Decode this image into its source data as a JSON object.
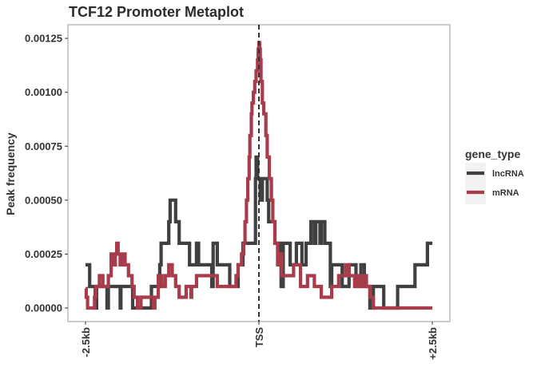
{
  "chart_data": {
    "type": "line",
    "title": "TCF12 Promoter Metaplot",
    "xlabel": "",
    "ylabel": "Peak frequency",
    "xlim": [
      -2500,
      2500
    ],
    "ylim": [
      0,
      0.00128
    ],
    "x_ticks": [
      {
        "value": -2500,
        "label": "-2.5kb"
      },
      {
        "value": 0,
        "label": "TSS"
      },
      {
        "value": 2500,
        "label": "+2.5kb"
      }
    ],
    "y_ticks": [
      {
        "value": 0,
        "label": "0.00000"
      },
      {
        "value": 0.00025,
        "label": "0.00025"
      },
      {
        "value": 0.0005,
        "label": "0.00050"
      },
      {
        "value": 0.00075,
        "label": "0.00075"
      },
      {
        "value": 0.001,
        "label": "0.00100"
      },
      {
        "value": 0.00125,
        "label": "0.00125"
      }
    ],
    "grid": false,
    "legend": {
      "title": "gene_type",
      "position": "right"
    },
    "vline": {
      "x": 0,
      "style": "dashed"
    },
    "series": [
      {
        "name": "lncRNA",
        "color": "#404040",
        "step": true,
        "points": [
          [
            -2500,
            0.0002
          ],
          [
            -2440,
            0.0001
          ],
          [
            -2360,
            0.0
          ],
          [
            -2340,
            0.0001
          ],
          [
            -2220,
            0.0001
          ],
          [
            -2190,
            0.0
          ],
          [
            -2170,
            0.0001
          ],
          [
            -2080,
            0.0001
          ],
          [
            -2030,
            0.0001
          ],
          [
            -2000,
            0.0
          ],
          [
            -1990,
            0.0001
          ],
          [
            -1890,
            0.0001
          ],
          [
            -1820,
            0.0
          ],
          [
            -1670,
            0.0
          ],
          [
            -1550,
            0.0001
          ],
          [
            -1430,
            0.0002
          ],
          [
            -1410,
            0.0003
          ],
          [
            -1300,
            0.0004
          ],
          [
            -1280,
            0.0005
          ],
          [
            -1200,
            0.0004
          ],
          [
            -1150,
            0.0003
          ],
          [
            -1000,
            0.0002
          ],
          [
            -900,
            0.0003
          ],
          [
            -870,
            0.0002
          ],
          [
            -700,
            0.0002
          ],
          [
            -680,
            0.0001
          ],
          [
            -660,
            0.0003
          ],
          [
            -600,
            0.0002
          ],
          [
            -450,
            0.0002
          ],
          [
            -420,
            0.0001
          ],
          [
            -350,
            0.0001
          ],
          [
            -300,
            0.0002
          ],
          [
            -230,
            0.0003
          ],
          [
            -150,
            0.0003
          ],
          [
            -50,
            0.0006
          ],
          [
            -40,
            0.0007
          ],
          [
            -20,
            0.0006
          ],
          [
            10,
            0.0006
          ],
          [
            20,
            0.0005
          ],
          [
            50,
            0.0006
          ],
          [
            100,
            0.0006
          ],
          [
            120,
            0.0005
          ],
          [
            140,
            0.0004
          ],
          [
            200,
            0.0004
          ],
          [
            220,
            0.0004
          ],
          [
            230,
            0.0003
          ],
          [
            280,
            0.0002
          ],
          [
            300,
            0.0003
          ],
          [
            320,
            0.0001
          ],
          [
            350,
            0.0003
          ],
          [
            420,
            0.0003
          ],
          [
            450,
            0.0002
          ],
          [
            480,
            0.0002
          ],
          [
            500,
            0.0002
          ],
          [
            520,
            0.0002
          ],
          [
            540,
            0.0003
          ],
          [
            600,
            0.0003
          ],
          [
            620,
            0.0002
          ],
          [
            680,
            0.0003
          ],
          [
            700,
            0.0003
          ],
          [
            750,
            0.0004
          ],
          [
            800,
            0.0003
          ],
          [
            820,
            0.0004
          ],
          [
            860,
            0.0004
          ],
          [
            880,
            0.0003
          ],
          [
            900,
            0.0004
          ],
          [
            950,
            0.0003
          ],
          [
            1000,
            0.0003
          ],
          [
            1030,
            0.0001
          ],
          [
            1050,
            0.0002
          ],
          [
            1150,
            0.0002
          ],
          [
            1200,
            0.0001
          ],
          [
            1300,
            0.0002
          ],
          [
            1400,
            0.0001
          ],
          [
            1450,
            0.0001
          ],
          [
            1470,
            0.0002
          ],
          [
            1520,
            0.0001
          ],
          [
            1600,
            0.0
          ],
          [
            1650,
            0.0001
          ],
          [
            1800,
            0.0
          ],
          [
            1950,
            0.0
          ],
          [
            2000,
            0.0001
          ],
          [
            2200,
            0.0001
          ],
          [
            2250,
            0.0002
          ],
          [
            2300,
            0.0002
          ],
          [
            2400,
            0.0002
          ],
          [
            2430,
            0.0003
          ],
          [
            2500,
            0.0003
          ]
        ]
      },
      {
        "name": "mRNA",
        "color": "#a83c4a",
        "step": true,
        "points": [
          [
            -2500,
            9e-05
          ],
          [
            -2490,
            5e-05
          ],
          [
            -2470,
            0.0
          ],
          [
            -2370,
            5e-05
          ],
          [
            -2350,
            0.0001
          ],
          [
            -2300,
            0.00015
          ],
          [
            -2250,
            0.0001
          ],
          [
            -2170,
            0.00015
          ],
          [
            -2130,
            0.00025
          ],
          [
            -2100,
            0.0002
          ],
          [
            -2070,
            0.00025
          ],
          [
            -2050,
            0.0003
          ],
          [
            -2030,
            0.00025
          ],
          [
            -2000,
            0.0002
          ],
          [
            -1960,
            0.00025
          ],
          [
            -1930,
            0.0002
          ],
          [
            -1880,
            0.00015
          ],
          [
            -1830,
            0.0001
          ],
          [
            -1800,
            5e-05
          ],
          [
            -1750,
            0.0
          ],
          [
            -1700,
            5e-05
          ],
          [
            -1600,
            5e-05
          ],
          [
            -1520,
            0.0
          ],
          [
            -1500,
            5e-05
          ],
          [
            -1450,
            0.00015
          ],
          [
            -1400,
            0.0001
          ],
          [
            -1350,
            0.00015
          ],
          [
            -1300,
            0.0002
          ],
          [
            -1250,
            0.00015
          ],
          [
            -1200,
            0.0001
          ],
          [
            -1150,
            5e-05
          ],
          [
            -1050,
            0.0001
          ],
          [
            -980,
            5e-05
          ],
          [
            -970,
            0.0001
          ],
          [
            -900,
            0.00015
          ],
          [
            -800,
            0.00015
          ],
          [
            -700,
            0.00015
          ],
          [
            -600,
            0.0001
          ],
          [
            -400,
            0.0001
          ],
          [
            -330,
            0.00015
          ],
          [
            -300,
            0.0002
          ],
          [
            -250,
            0.00025
          ],
          [
            -220,
            0.0003
          ],
          [
            -200,
            0.0004
          ],
          [
            -180,
            0.0005
          ],
          [
            -160,
            0.0006
          ],
          [
            -140,
            0.0007
          ],
          [
            -130,
            0.0008
          ],
          [
            -110,
            0.0009
          ],
          [
            -100,
            0.00095
          ],
          [
            -80,
            0.001
          ],
          [
            -60,
            0.00105
          ],
          [
            -40,
            0.0011
          ],
          [
            -20,
            0.00115
          ],
          [
            -10,
            0.0012
          ],
          [
            0,
            0.00123
          ],
          [
            10,
            0.0012
          ],
          [
            20,
            0.00115
          ],
          [
            30,
            0.00105
          ],
          [
            50,
            0.00095
          ],
          [
            70,
            0.0009
          ],
          [
            100,
            0.0008
          ],
          [
            120,
            0.0007
          ],
          [
            150,
            0.0006
          ],
          [
            180,
            0.0005
          ],
          [
            200,
            0.0004
          ],
          [
            230,
            0.0003
          ],
          [
            270,
            0.0002
          ],
          [
            300,
            0.00025
          ],
          [
            330,
            0.00015
          ],
          [
            400,
            0.00015
          ],
          [
            500,
            0.0002
          ],
          [
            600,
            0.0001
          ],
          [
            700,
            0.00015
          ],
          [
            800,
            0.0001
          ],
          [
            900,
            5e-05
          ],
          [
            1050,
            0.0001
          ],
          [
            1150,
            0.00015
          ],
          [
            1250,
            0.0002
          ],
          [
            1300,
            0.00015
          ],
          [
            1380,
            0.0001
          ],
          [
            1420,
            0.00015
          ],
          [
            1450,
            0.0001
          ],
          [
            1500,
            0.00015
          ],
          [
            1550,
            0.0001
          ],
          [
            1600,
            5e-05
          ],
          [
            1650,
            0.0
          ],
          [
            1800,
            0.0
          ],
          [
            2000,
            0.0
          ],
          [
            2300,
            0.0
          ],
          [
            2500,
            0.0
          ]
        ]
      }
    ]
  }
}
